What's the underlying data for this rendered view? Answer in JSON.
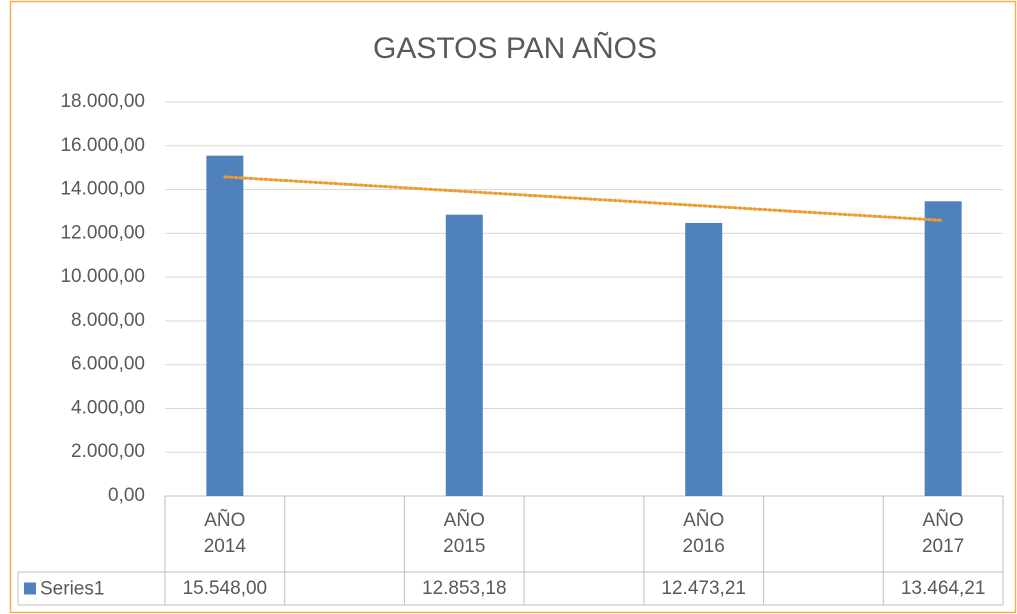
{
  "chart_data": {
    "type": "bar",
    "title": "GASTOS PAN AÑOS",
    "categories": [
      "AÑO 2014",
      null,
      "AÑO 2015",
      null,
      "AÑO 2016",
      null,
      "AÑO 2017"
    ],
    "series": [
      {
        "name": "Series1",
        "color": "#4f81bd",
        "values": [
          15548,
          null,
          12853.18,
          null,
          12473.21,
          null,
          13464.21
        ],
        "value_labels": [
          "15.548,00",
          null,
          "12.853,18",
          null,
          "12.473,21",
          null,
          "13.464,21"
        ]
      }
    ],
    "ylim": [
      0,
      18000
    ],
    "yticks": [
      {
        "value": 0,
        "label": "0,00"
      },
      {
        "value": 2000,
        "label": "2.000,00"
      },
      {
        "value": 4000,
        "label": "4.000,00"
      },
      {
        "value": 6000,
        "label": "6.000,00"
      },
      {
        "value": 8000,
        "label": "8.000,00"
      },
      {
        "value": 10000,
        "label": "10.000,00"
      },
      {
        "value": 12000,
        "label": "12.000,00"
      },
      {
        "value": 14000,
        "label": "14.000,00"
      },
      {
        "value": 16000,
        "label": "16.000,00"
      },
      {
        "value": 18000,
        "label": "18.000,00"
      }
    ],
    "grid": true,
    "trendline": {
      "type": "linear",
      "color": "#ed9b2f"
    }
  }
}
